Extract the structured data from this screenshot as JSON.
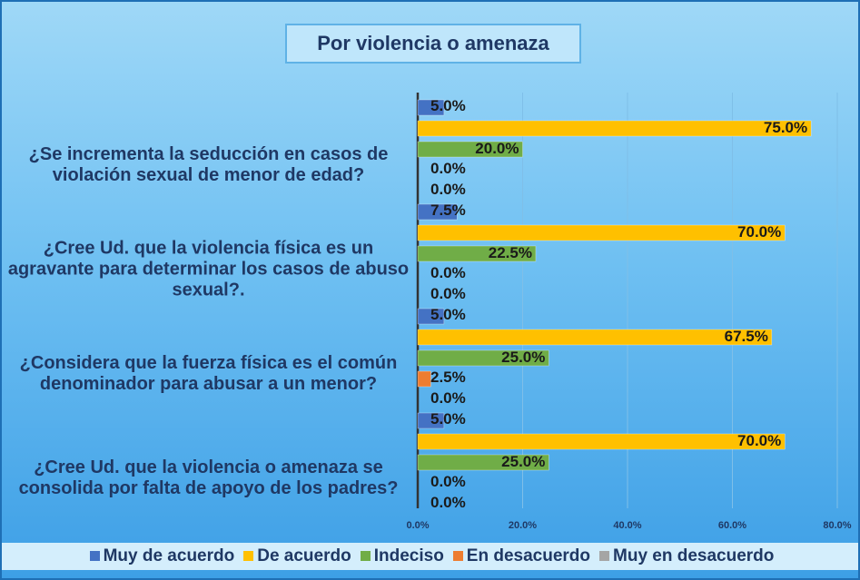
{
  "chart_data": {
    "type": "bar",
    "orientation": "horizontal",
    "title": "Por violencia o amenaza",
    "categories": [
      "¿Se incrementa la seducción en casos de violación sexual de menor de edad?",
      "¿Cree Ud. que la violencia física es un agravante para determinar los casos de abuso sexual?.",
      "¿Considera que la fuerza física es el común denominador para abusar a un menor?",
      "¿Cree Ud. que la violencia o amenaza se consolida por falta de apoyo de los padres?"
    ],
    "series": [
      {
        "name": "Muy de acuerdo",
        "color": "#4472c4",
        "values": [
          5,
          7.5,
          5,
          5
        ],
        "value_labels": [
          "5.0%",
          "7.5%",
          "5.0%",
          "5.0%"
        ]
      },
      {
        "name": "De acuerdo",
        "color": "#ffc000",
        "values": [
          75,
          70,
          67.5,
          70
        ],
        "value_labels": [
          "75.0%",
          "70.0%",
          "67.5%",
          "70.0%"
        ]
      },
      {
        "name": "Indeciso",
        "color": "#70ad47",
        "values": [
          20,
          22.5,
          25,
          25
        ],
        "value_labels": [
          "20.0%",
          "22.5%",
          "25.0%",
          "25.0%"
        ]
      },
      {
        "name": "En desacuerdo",
        "color": "#ed7d31",
        "values": [
          0,
          0,
          2.5,
          0
        ],
        "value_labels": [
          "0.0%",
          "0.0%",
          "2.5%",
          "0.0%"
        ]
      },
      {
        "name": "Muy en desacuerdo",
        "color": "#a5a5a5",
        "values": [
          0,
          0,
          0,
          0
        ],
        "value_labels": [
          "0.0%",
          "0.0%",
          "0.0%",
          "0.0%"
        ]
      }
    ],
    "xlim": [
      0,
      80
    ],
    "xticks": [
      {
        "value": 0,
        "label": "0.0%"
      },
      {
        "value": 20,
        "label": "20.0%"
      },
      {
        "value": 40,
        "label": "40.0%"
      },
      {
        "value": 60,
        "label": "60.0%"
      },
      {
        "value": 80,
        "label": "80.0%"
      }
    ],
    "grid": true,
    "legend": "bottom"
  }
}
